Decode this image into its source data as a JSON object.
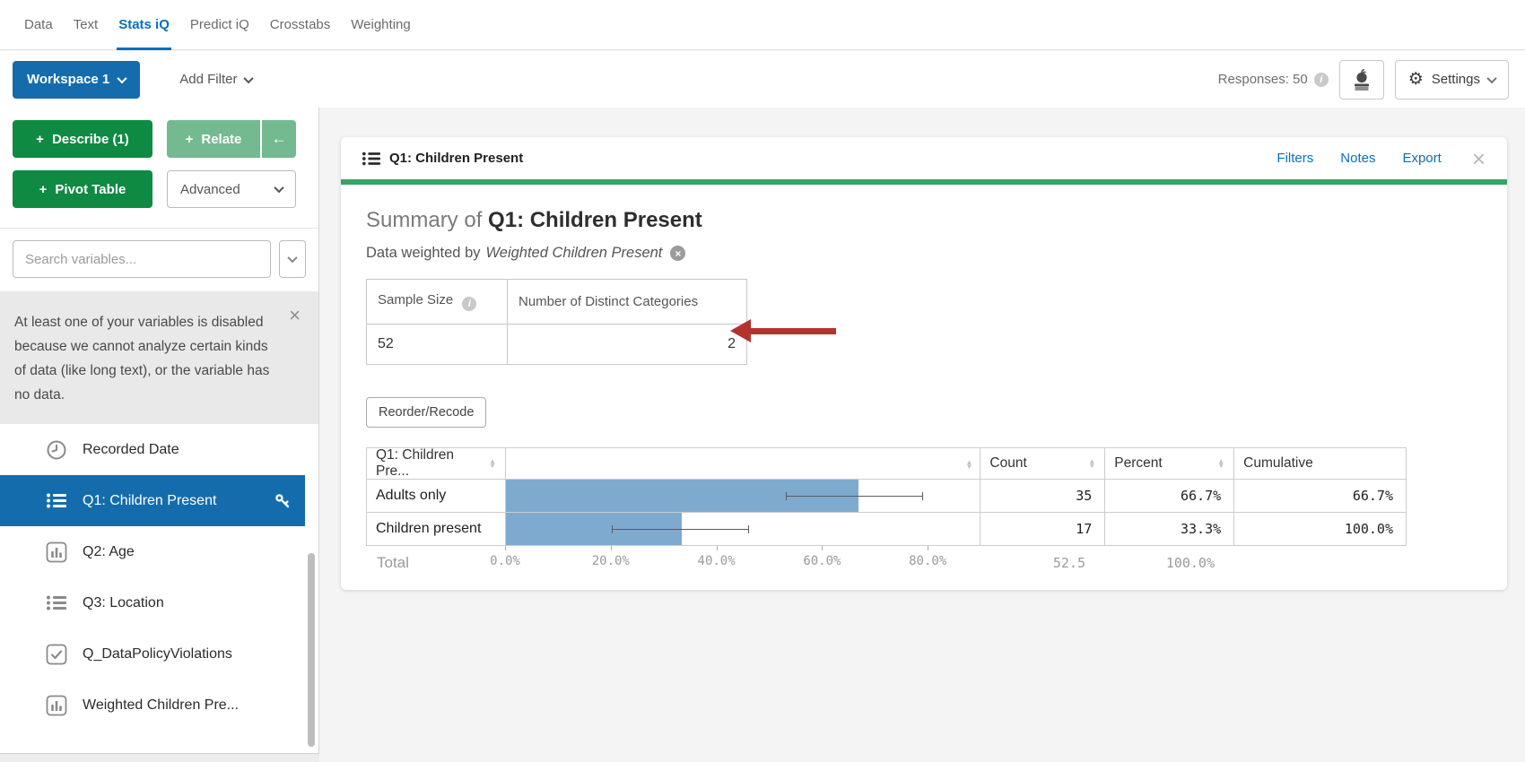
{
  "nav": {
    "tabs": [
      {
        "label": "Data"
      },
      {
        "label": "Text"
      },
      {
        "label": "Stats iQ",
        "active": true
      },
      {
        "label": "Predict iQ"
      },
      {
        "label": "Crosstabs"
      },
      {
        "label": "Weighting"
      }
    ]
  },
  "toolbar": {
    "workspace_button": "Workspace 1",
    "add_filter": "Add Filter",
    "responses": "Responses: 50",
    "settings": "Settings"
  },
  "sidebar": {
    "describe_button": "Describe (1)",
    "relate_button": "Relate",
    "back_arrow": "←",
    "pivot_button": "Pivot Table",
    "advanced_button": "Advanced",
    "search_placeholder": "Search variables...",
    "warning": "At least one of your variables is disabled because we cannot analyze certain kinds of data (like long text), or the variable has no data.",
    "variables": [
      {
        "label": "Recorded Date",
        "icon": "clock-icon",
        "selected": false
      },
      {
        "label": "Q1: Children Present",
        "icon": "list-icon",
        "selected": true
      },
      {
        "label": "Q2: Age",
        "icon": "histogram-icon",
        "selected": false
      },
      {
        "label": "Q3: Location",
        "icon": "list-icon",
        "selected": false
      },
      {
        "label": "Q_DataPolicyViolations",
        "icon": "checkbox-icon",
        "selected": false
      },
      {
        "label": "Weighted Children Pre...",
        "icon": "histogram-icon",
        "selected": false
      }
    ]
  },
  "card": {
    "title": "Q1: Children Present",
    "actions": {
      "filters": "Filters",
      "notes": "Notes",
      "export": "Export"
    },
    "summary_prefix": "Summary of",
    "summary_title": "Q1: Children Present",
    "weighted_prefix": "Data weighted by",
    "weighted_variable": "Weighted Children Present",
    "stats": {
      "sample_size_header": "Sample Size",
      "distinct_header": "Number of Distinct Categories",
      "sample_size": "52",
      "distinct": "2"
    },
    "reorder_button": "Reorder/Recode",
    "table": {
      "col_variable": "Q1: Children Pre...",
      "col_count": "Count",
      "col_percent": "Percent",
      "col_cumulative": "Cumulative",
      "total_label": "Total"
    }
  },
  "chart_data": {
    "type": "bar",
    "orientation": "horizontal",
    "title": "Q1: Children Present frequency summary",
    "categories": [
      "Adults only",
      "Children present"
    ],
    "series": [
      {
        "name": "Percent",
        "values": [
          66.7,
          33.3
        ]
      }
    ],
    "counts": [
      "35",
      "17"
    ],
    "percents": [
      "66.7%",
      "33.3%"
    ],
    "cumulative": [
      "66.7%",
      "100.0%"
    ],
    "error_bars": [
      {
        "low": 53,
        "high": 79
      },
      {
        "low": 20,
        "high": 46
      }
    ],
    "total": {
      "count": "52.5",
      "percent": "100.0%"
    },
    "x_ticks": [
      "0.0%",
      "20.0%",
      "40.0%",
      "60.0%",
      "80.0%"
    ],
    "x_tick_values": [
      0,
      20,
      40,
      60,
      80
    ],
    "xlim": [
      0,
      100
    ],
    "grid": false,
    "legend": "none",
    "bar_color": "#7faacf"
  },
  "colors": {
    "accent_blue": "#0b6fba",
    "button_blue": "#146cad",
    "green_dark": "#0f8a43",
    "green_light": "#74ba90",
    "card_green_bar": "#3aa366",
    "bar_blue": "#7faacf",
    "annotation_red": "#b5332e"
  }
}
